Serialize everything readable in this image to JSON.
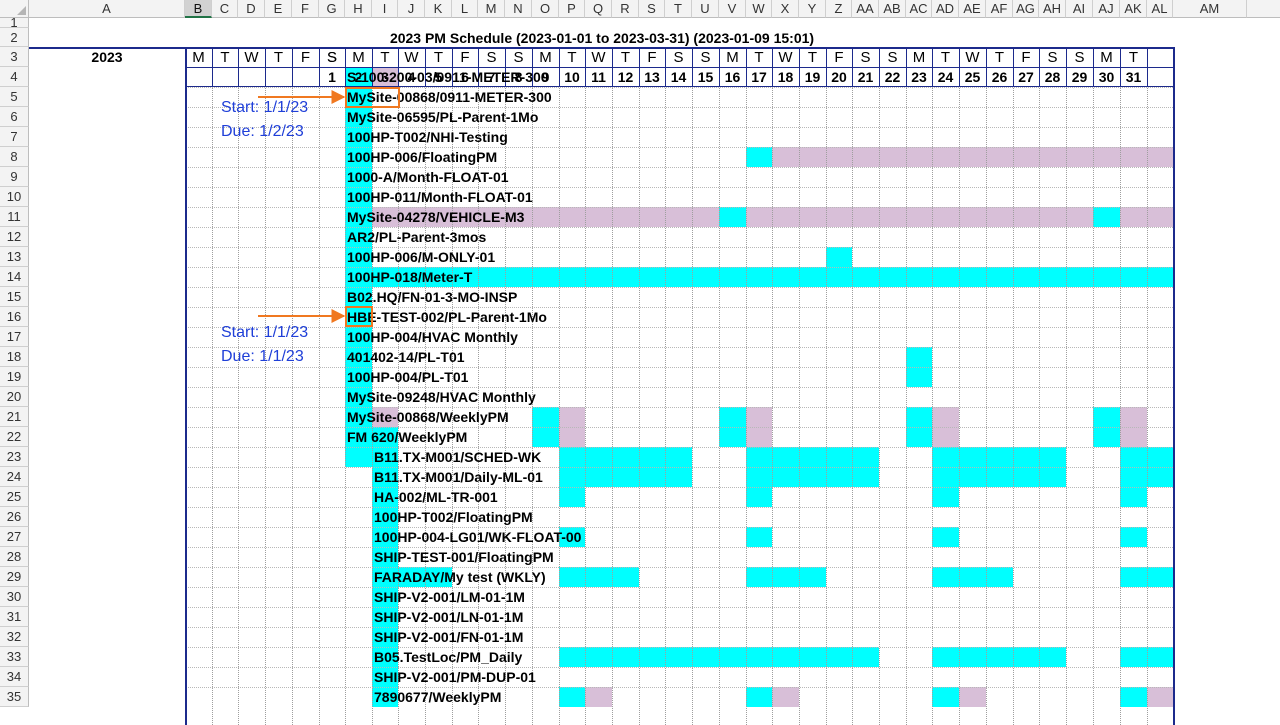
{
  "sheet": {
    "columns": [
      "A",
      "B",
      "C",
      "D",
      "E",
      "F",
      "G",
      "H",
      "I",
      "J",
      "K",
      "L",
      "M",
      "N",
      "O",
      "P",
      "Q",
      "R",
      "S",
      "T",
      "U",
      "V",
      "W",
      "X",
      "Y",
      "Z",
      "AA",
      "AB",
      "AC",
      "AD",
      "AE",
      "AF",
      "AG",
      "AH",
      "AI",
      "AJ",
      "AK",
      "AL",
      "AM"
    ],
    "selected_column": "B",
    "rows": [
      "1",
      "2",
      "3",
      "4",
      "5",
      "6",
      "7",
      "8",
      "9",
      "10",
      "11",
      "12",
      "13",
      "14",
      "15",
      "16",
      "17",
      "18",
      "19",
      "20",
      "21",
      "22",
      "23",
      "24",
      "25",
      "26",
      "27",
      "28",
      "29",
      "30",
      "31",
      "32",
      "33",
      "34",
      "35"
    ],
    "title": "2023 PM Schedule (2023-01-01 to 2023-03-31) (2023-01-09 15:01)",
    "year_label": "2023",
    "week_header": [
      "M",
      "T",
      "W",
      "T",
      "F",
      "S"
    ],
    "day_of_week": [
      "S",
      "M",
      "T",
      "W",
      "T",
      "F",
      "S",
      "S",
      "M",
      "T",
      "W",
      "T",
      "F",
      "S",
      "S",
      "M",
      "T",
      "W",
      "T",
      "F",
      "S",
      "S",
      "M",
      "T",
      "W",
      "T",
      "F",
      "S",
      "S",
      "M",
      "T"
    ],
    "dates": [
      "1",
      "2",
      "3",
      "4",
      "5",
      "6",
      "7",
      "8",
      "9",
      "10",
      "11",
      "12",
      "13",
      "14",
      "15",
      "16",
      "17",
      "18",
      "19",
      "20",
      "21",
      "22",
      "23",
      "24",
      "25",
      "26",
      "27",
      "28",
      "29",
      "30",
      "31"
    ],
    "tasks": [
      "S-100-200-03/0911-METER-300",
      "MySite-00868/0911-METER-300",
      "MySite-06595/PL-Parent-1Mo",
      "100HP-T002/NHI-Testing",
      "100HP-006/FloatingPM",
      "1000-A/Month-FLOAT-01",
      "100HP-011/Month-FLOAT-01",
      "MySite-04278/VEHICLE-M3",
      "AR2/PL-Parent-3mos",
      "100HP-006/M-ONLY-01",
      "100HP-018/Meter-T",
      "B02.HQ/FN-01-3-MO-INSP",
      "HBE-TEST-002/PL-Parent-1Mo",
      "100HP-004/HVAC Monthly",
      "401402-14/PL-T01",
      "100HP-004/PL-T01",
      "MySite-09248/HVAC Monthly",
      "MySite-00868/WeeklyPM",
      "FM 620/WeeklyPM",
      "B11.TX-M001/SCHED-WK",
      "B11.TX-M001/Daily-ML-01",
      "HA-002/ML-TR-001",
      "100HP-T002/FloatingPM",
      "100HP-004-LG01/WK-FLOAT-00",
      "SHIP-TEST-001/FloatingPM",
      "FARADAY/My test (WKLY)",
      "SHIP-V2-001/LM-01-1M",
      "SHIP-V2-001/LN-01-1M",
      "SHIP-V2-001/FN-01-1M",
      "B05.TestLoc/PM_Daily",
      "SHIP-V2-001/PM-DUP-01",
      "7890677/WeeklyPM"
    ],
    "notes": [
      {
        "start": "Start: 1/1/23",
        "due": "Due: 1/2/23"
      },
      {
        "start": "Start: 1/1/23",
        "due": "Due: 1/1/23"
      }
    ],
    "colors": {
      "scheduled": "#00ffff",
      "overdue": "#d8bfd8",
      "annotation": "#1f3fd8",
      "arrow": "#f07820",
      "header_border": "#1c2a8c"
    }
  }
}
